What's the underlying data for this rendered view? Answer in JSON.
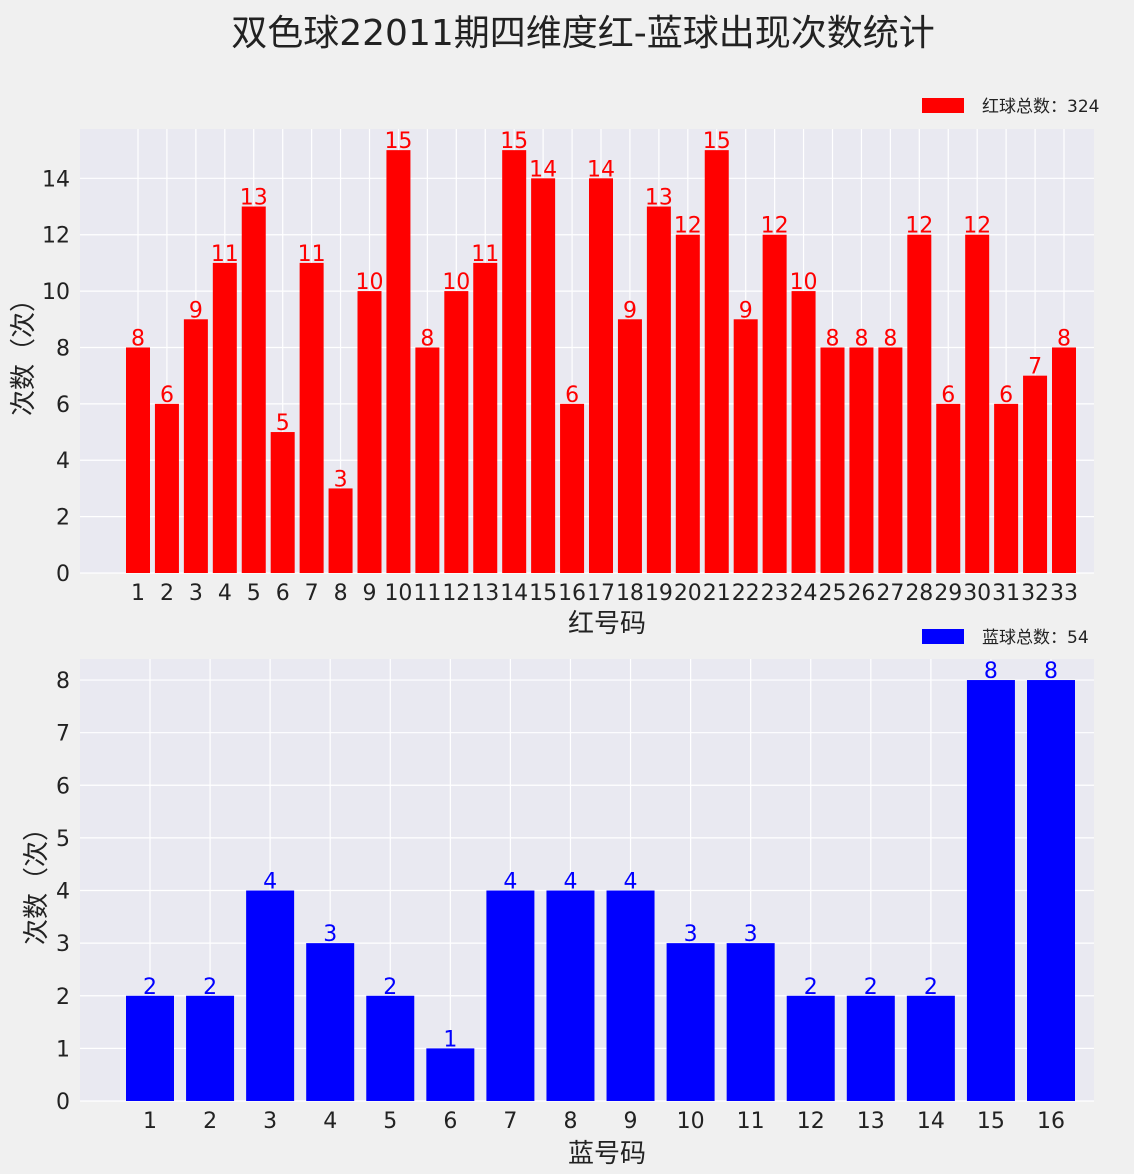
{
  "title": "双色球22011期四维度红-蓝球出现次数统计",
  "chart_data": [
    {
      "type": "bar",
      "color": "#ff0000",
      "categories": [
        "1",
        "2",
        "3",
        "4",
        "5",
        "6",
        "7",
        "8",
        "9",
        "10",
        "11",
        "12",
        "13",
        "14",
        "15",
        "16",
        "17",
        "18",
        "19",
        "20",
        "21",
        "22",
        "23",
        "24",
        "25",
        "26",
        "27",
        "28",
        "29",
        "30",
        "31",
        "32",
        "33"
      ],
      "series": [
        {
          "name": "红球总数：324",
          "values": [
            8,
            6,
            9,
            11,
            13,
            5,
            11,
            3,
            10,
            15,
            8,
            10,
            11,
            15,
            14,
            6,
            14,
            9,
            13,
            12,
            15,
            9,
            12,
            10,
            8,
            8,
            8,
            12,
            6,
            12,
            6,
            7,
            8
          ]
        }
      ],
      "xlabel": "红号码",
      "ylabel": "次数（次）",
      "ylim": [
        0,
        15.75
      ],
      "yticks": [
        0,
        2,
        4,
        6,
        8,
        10,
        12,
        14
      ],
      "grid": true,
      "legend": "top-right",
      "data_labels": true
    },
    {
      "type": "bar",
      "color": "#0000ff",
      "categories": [
        "1",
        "2",
        "3",
        "4",
        "5",
        "6",
        "7",
        "8",
        "9",
        "10",
        "11",
        "12",
        "13",
        "14",
        "15",
        "16"
      ],
      "series": [
        {
          "name": "蓝球总数：54",
          "values": [
            2,
            2,
            4,
            3,
            2,
            1,
            4,
            4,
            4,
            3,
            3,
            2,
            2,
            2,
            8,
            8
          ]
        }
      ],
      "xlabel": "蓝号码",
      "ylabel": "次数（次）",
      "ylim": [
        0,
        8.4
      ],
      "yticks": [
        0,
        1,
        2,
        3,
        4,
        5,
        6,
        7,
        8
      ],
      "grid": true,
      "legend": "top-right",
      "data_labels": true
    }
  ]
}
